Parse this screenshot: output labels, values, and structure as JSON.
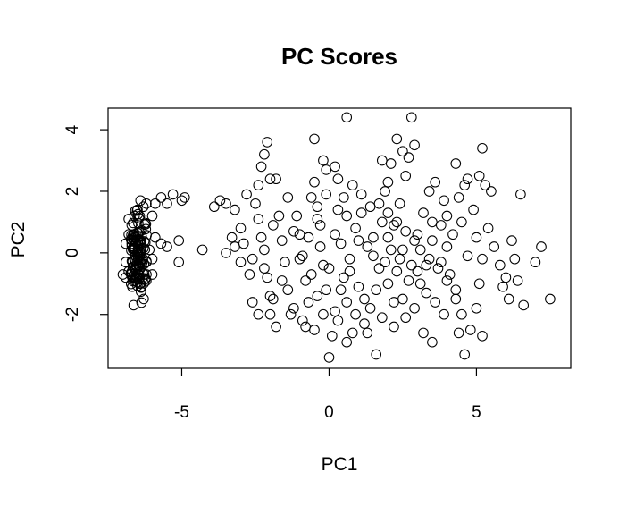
{
  "chart_data": {
    "type": "scatter",
    "title": "PC Scores",
    "xlabel": "PC1",
    "ylabel": "PC2",
    "xlim": [
      -7.5,
      8.2
    ],
    "ylim": [
      -3.75,
      4.7
    ],
    "xticks": [
      -5,
      0,
      5
    ],
    "yticks": [
      -2,
      0,
      2,
      4
    ],
    "x_tick_labels": [
      "-5",
      "0",
      "5"
    ],
    "y_tick_labels": [
      "-2",
      "0",
      "2",
      "4"
    ],
    "marker": "open-circle",
    "grid": false,
    "legend": "none",
    "points_cluster_left_generated_count": 120,
    "points": [
      [
        -6.4,
        1.7
      ],
      [
        -6.2,
        1.6
      ],
      [
        -6.8,
        1.1
      ],
      [
        -6.6,
        1.2
      ],
      [
        -6.5,
        1.4
      ],
      [
        -6.3,
        1.5
      ],
      [
        -6.0,
        1.2
      ],
      [
        -5.9,
        1.6
      ],
      [
        -5.7,
        1.8
      ],
      [
        -5.5,
        1.6
      ],
      [
        -5.3,
        1.9
      ],
      [
        -4.9,
        1.8
      ],
      [
        -5.0,
        1.7
      ],
      [
        -6.9,
        0.3
      ],
      [
        -6.8,
        0.6
      ],
      [
        -6.7,
        0.9
      ],
      [
        -6.9,
        -0.3
      ],
      [
        -6.8,
        -0.6
      ],
      [
        -6.9,
        -0.8
      ],
      [
        -7.0,
        -0.7
      ],
      [
        -6.6,
        -0.9
      ],
      [
        -6.4,
        -1.0
      ],
      [
        -6.2,
        -0.9
      ],
      [
        -6.0,
        -0.7
      ],
      [
        -5.9,
        0.5
      ],
      [
        -5.7,
        0.3
      ],
      [
        -5.5,
        0.2
      ],
      [
        -5.1,
        0.4
      ],
      [
        -5.1,
        -0.3
      ],
      [
        -6.1,
        0.1
      ],
      [
        -6.0,
        -0.2
      ],
      [
        -4.3,
        0.1
      ],
      [
        -3.9,
        1.5
      ],
      [
        -3.7,
        1.7
      ],
      [
        -3.5,
        1.6
      ],
      [
        -3.2,
        1.4
      ],
      [
        -3.3,
        0.5
      ],
      [
        -3.2,
        0.2
      ],
      [
        -3.0,
        -0.3
      ],
      [
        -2.9,
        0.3
      ],
      [
        -2.7,
        -0.7
      ],
      [
        -2.6,
        -0.2
      ],
      [
        -2.8,
        1.9
      ],
      [
        -2.5,
        1.6
      ],
      [
        -2.4,
        1.1
      ],
      [
        -2.3,
        0.5
      ],
      [
        -2.2,
        -0.5
      ],
      [
        -2.1,
        -0.8
      ],
      [
        -2.0,
        -1.4
      ],
      [
        -2.4,
        -2.0
      ],
      [
        -2.6,
        -1.6
      ],
      [
        -2.0,
        -2.0
      ],
      [
        -1.9,
        -1.5
      ],
      [
        -2.4,
        2.2
      ],
      [
        -2.3,
        2.8
      ],
      [
        -2.2,
        3.2
      ],
      [
        -2.1,
        3.6
      ],
      [
        -2.0,
        2.4
      ],
      [
        -1.8,
        2.4
      ],
      [
        -1.7,
        1.2
      ],
      [
        -1.6,
        0.4
      ],
      [
        -1.5,
        -0.3
      ],
      [
        -1.4,
        -1.2
      ],
      [
        -1.3,
        -2.0
      ],
      [
        -1.8,
        -2.4
      ],
      [
        -1.1,
        1.2
      ],
      [
        -1.0,
        0.6
      ],
      [
        -0.9,
        -0.1
      ],
      [
        -0.8,
        -0.9
      ],
      [
        -0.7,
        -1.6
      ],
      [
        -0.6,
        1.8
      ],
      [
        -0.5,
        2.3
      ],
      [
        -0.4,
        1.5
      ],
      [
        -0.3,
        0.9
      ],
      [
        -0.2,
        -0.4
      ],
      [
        -0.1,
        -1.2
      ],
      [
        -0.5,
        3.7
      ],
      [
        -0.2,
        3.0
      ],
      [
        -0.1,
        2.7
      ],
      [
        0.2,
        2.8
      ],
      [
        -0.8,
        -2.4
      ],
      [
        -0.5,
        -2.5
      ],
      [
        -0.2,
        -2.0
      ],
      [
        0.1,
        -2.7
      ],
      [
        0.3,
        -2.2
      ],
      [
        0.0,
        -3.4
      ],
      [
        0.6,
        4.4
      ],
      [
        0.3,
        2.4
      ],
      [
        0.5,
        1.8
      ],
      [
        0.8,
        2.2
      ],
      [
        1.1,
        1.9
      ],
      [
        0.6,
        1.2
      ],
      [
        0.9,
        0.8
      ],
      [
        0.4,
        0.3
      ],
      [
        0.7,
        -0.2
      ],
      [
        0.5,
        -0.8
      ],
      [
        1.0,
        -1.1
      ],
      [
        0.6,
        -1.6
      ],
      [
        0.8,
        -2.6
      ],
      [
        0.6,
        -2.9
      ],
      [
        1.2,
        -2.3
      ],
      [
        1.6,
        -3.3
      ],
      [
        1.4,
        -1.8
      ],
      [
        1.6,
        -1.2
      ],
      [
        1.5,
        0.5
      ],
      [
        1.8,
        1.0
      ],
      [
        1.9,
        2.0
      ],
      [
        2.0,
        2.3
      ],
      [
        2.1,
        2.9
      ],
      [
        1.8,
        3.0
      ],
      [
        2.3,
        3.7
      ],
      [
        2.5,
        3.3
      ],
      [
        2.7,
        3.1
      ],
      [
        2.8,
        4.4
      ],
      [
        2.9,
        3.5
      ],
      [
        2.6,
        2.5
      ],
      [
        2.4,
        1.6
      ],
      [
        2.2,
        0.9
      ],
      [
        2.1,
        0.1
      ],
      [
        2.3,
        -0.6
      ],
      [
        2.5,
        -1.5
      ],
      [
        2.2,
        -2.4
      ],
      [
        2.6,
        -2.1
      ],
      [
        2.9,
        -1.8
      ],
      [
        3.2,
        -2.6
      ],
      [
        3.5,
        -2.9
      ],
      [
        3.1,
        -1.0
      ],
      [
        3.3,
        -0.4
      ],
      [
        3.0,
        0.6
      ],
      [
        3.2,
        1.3
      ],
      [
        3.4,
        2.0
      ],
      [
        3.6,
        2.3
      ],
      [
        3.9,
        1.7
      ],
      [
        3.8,
        0.9
      ],
      [
        4.0,
        0.2
      ],
      [
        4.1,
        -0.7
      ],
      [
        4.3,
        -1.2
      ],
      [
        4.5,
        -2.0
      ],
      [
        4.4,
        -2.6
      ],
      [
        4.6,
        -3.3
      ],
      [
        4.8,
        -2.5
      ],
      [
        5.0,
        -1.8
      ],
      [
        5.1,
        -1.0
      ],
      [
        5.2,
        -0.2
      ],
      [
        5.0,
        0.5
      ],
      [
        4.9,
        1.4
      ],
      [
        4.6,
        2.2
      ],
      [
        4.3,
        2.9
      ],
      [
        4.7,
        2.4
      ],
      [
        5.1,
        2.5
      ],
      [
        5.2,
        3.4
      ],
      [
        5.3,
        2.2
      ],
      [
        5.5,
        2.0
      ],
      [
        5.4,
        0.8
      ],
      [
        5.6,
        0.2
      ],
      [
        5.8,
        -0.4
      ],
      [
        5.9,
        -1.1
      ],
      [
        6.1,
        -1.5
      ],
      [
        6.0,
        -0.8
      ],
      [
        6.3,
        -0.2
      ],
      [
        6.4,
        -0.9
      ],
      [
        6.6,
        -1.7
      ],
      [
        6.5,
        1.9
      ],
      [
        6.2,
        0.4
      ],
      [
        7.0,
        -0.3
      ],
      [
        7.2,
        0.2
      ],
      [
        7.5,
        -1.5
      ],
      [
        5.2,
        -2.7
      ],
      [
        3.9,
        -2.0
      ],
      [
        1.2,
        -1.5
      ],
      [
        1.3,
        0.2
      ],
      [
        1.0,
        0.4
      ],
      [
        1.7,
        -0.5
      ],
      [
        2.0,
        -1.0
      ],
      [
        2.7,
        -0.9
      ],
      [
        3.5,
        0.4
      ],
      [
        3.8,
        -0.3
      ],
      [
        4.2,
        0.6
      ],
      [
        4.5,
        1.0
      ],
      [
        4.7,
        -0.1
      ],
      [
        0.2,
        0.6
      ],
      [
        0.0,
        -0.5
      ],
      [
        -0.3,
        0.2
      ],
      [
        -0.6,
        -0.7
      ],
      [
        -1.0,
        -0.2
      ],
      [
        -1.2,
        0.7
      ],
      [
        -1.4,
        1.8
      ],
      [
        -1.6,
        -0.9
      ],
      [
        -1.2,
        -1.8
      ],
      [
        -0.9,
        -2.2
      ],
      [
        -0.4,
        -1.4
      ],
      [
        0.2,
        -1.9
      ],
      [
        0.4,
        -1.2
      ],
      [
        0.7,
        -0.6
      ],
      [
        1.1,
        1.3
      ],
      [
        1.4,
        1.5
      ],
      [
        1.7,
        1.6
      ],
      [
        2.0,
        1.3
      ],
      [
        2.3,
        1.0
      ],
      [
        2.6,
        0.7
      ],
      [
        2.9,
        0.4
      ],
      [
        3.1,
        0.1
      ],
      [
        3.4,
        -0.2
      ],
      [
        3.7,
        -0.5
      ],
      [
        4.0,
        -0.9
      ],
      [
        4.3,
        -1.5
      ],
      [
        1.5,
        -0.1
      ],
      [
        1.9,
        -0.3
      ],
      [
        2.4,
        -0.2
      ],
      [
        2.8,
        -0.4
      ],
      [
        3.3,
        -1.3
      ],
      [
        3.6,
        -1.6
      ],
      [
        2.2,
        -1.6
      ],
      [
        1.8,
        -2.1
      ],
      [
        1.3,
        -2.6
      ],
      [
        0.9,
        -2.0
      ],
      [
        2.0,
        0.5
      ],
      [
        2.5,
        0.1
      ],
      [
        3.0,
        -0.6
      ],
      [
        3.5,
        1.0
      ],
      [
        4.0,
        1.2
      ],
      [
        4.4,
        1.8
      ],
      [
        0.3,
        1.4
      ],
      [
        -0.1,
        1.9
      ],
      [
        -0.4,
        1.1
      ],
      [
        -0.7,
        0.5
      ],
      [
        -1.9,
        0.9
      ],
      [
        -2.2,
        0.1
      ],
      [
        -3.0,
        0.8
      ],
      [
        -3.5,
        0.0
      ]
    ]
  }
}
